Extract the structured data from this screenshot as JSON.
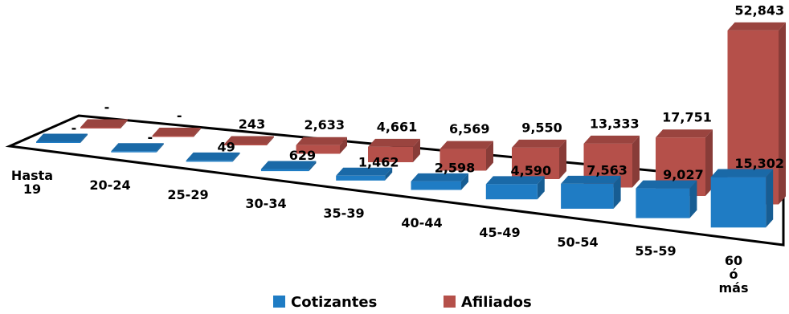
{
  "chart_data": {
    "type": "bar3d",
    "categories": [
      "Hasta 19",
      "20-24",
      "25-29",
      "30-34",
      "35-39",
      "40-44",
      "45-49",
      "50-54",
      "55-59",
      "60 ó más"
    ],
    "series": [
      {
        "name": "Cotizantes",
        "color": "#1f7cc4",
        "values": [
          0,
          0,
          49,
          629,
          1462,
          2598,
          4590,
          7563,
          9027,
          15302
        ],
        "value_labels": [
          "-",
          "-",
          "49",
          "629",
          "1,462",
          "2,598",
          "4,590",
          "7,563",
          "9,027",
          "15,302"
        ]
      },
      {
        "name": "Afiliados",
        "color": "#b5504a",
        "values": [
          0,
          0,
          243,
          2633,
          4661,
          6569,
          9550,
          13333,
          17751,
          52843
        ],
        "value_labels": [
          "-",
          "-",
          "243",
          "2,633",
          "4,661",
          "6,569",
          "9,550",
          "13,333",
          "17,751",
          "52,843"
        ]
      }
    ],
    "legend": "bottom"
  }
}
